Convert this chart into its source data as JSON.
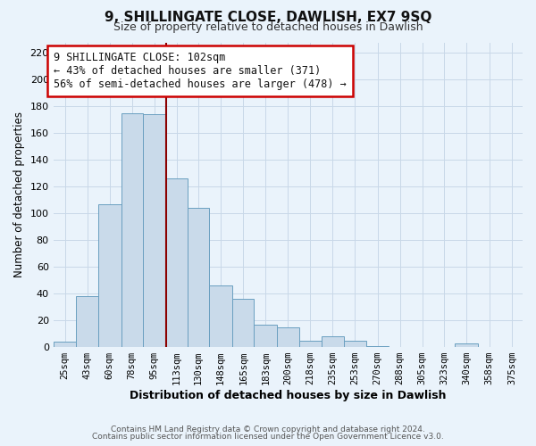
{
  "title": "9, SHILLINGATE CLOSE, DAWLISH, EX7 9SQ",
  "subtitle": "Size of property relative to detached houses in Dawlish",
  "xlabel": "Distribution of detached houses by size in Dawlish",
  "ylabel": "Number of detached properties",
  "bar_labels": [
    "25sqm",
    "43sqm",
    "60sqm",
    "78sqm",
    "95sqm",
    "113sqm",
    "130sqm",
    "148sqm",
    "165sqm",
    "183sqm",
    "200sqm",
    "218sqm",
    "235sqm",
    "253sqm",
    "270sqm",
    "288sqm",
    "305sqm",
    "323sqm",
    "340sqm",
    "358sqm",
    "375sqm"
  ],
  "bar_values": [
    4,
    38,
    107,
    175,
    174,
    126,
    104,
    46,
    36,
    17,
    15,
    5,
    8,
    5,
    1,
    0,
    0,
    0,
    3,
    0,
    0
  ],
  "bin_edges": [
    16.5,
    34.5,
    51.5,
    69.5,
    86.5,
    104.5,
    121.5,
    138.5,
    156.5,
    173.5,
    191.5,
    208.5,
    226.5,
    243.5,
    261.5,
    278.5,
    296.5,
    313.5,
    330.5,
    348.5,
    366.5,
    383.5
  ],
  "bar_color": "#c9daea",
  "bar_edgecolor": "#6a9fc0",
  "grid_color": "#c8d8e8",
  "bg_color": "#eaf3fb",
  "vline_x": 104.5,
  "vline_color": "#8b0000",
  "annotation_title": "9 SHILLINGATE CLOSE: 102sqm",
  "annotation_line1": "← 43% of detached houses are smaller (371)",
  "annotation_line2": "56% of semi-detached houses are larger (478) →",
  "annotation_box_facecolor": "#ffffff",
  "annotation_box_edgecolor": "#cc0000",
  "ylim": [
    0,
    228
  ],
  "yticks": [
    0,
    20,
    40,
    60,
    80,
    100,
    120,
    140,
    160,
    180,
    200,
    220
  ],
  "footer1": "Contains HM Land Registry data © Crown copyright and database right 2024.",
  "footer2": "Contains public sector information licensed under the Open Government Licence v3.0."
}
